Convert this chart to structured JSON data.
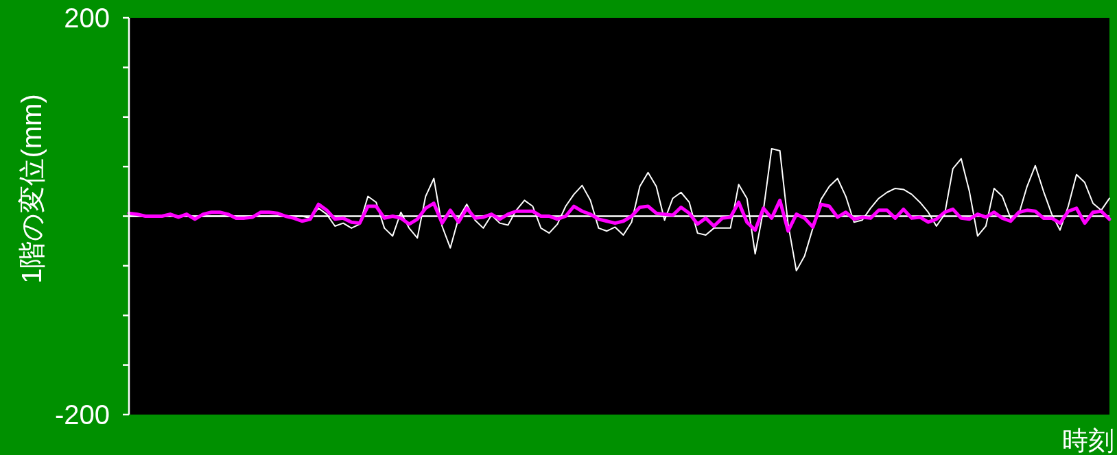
{
  "chart_data": {
    "type": "line",
    "xlabel": "時刻",
    "ylabel": "1階の変位(mm)",
    "categories": [
      null,
      null,
      null,
      null,
      null,
      null,
      null,
      null,
      null,
      null,
      null,
      null,
      null,
      null,
      null,
      null,
      null,
      null,
      null,
      null,
      null,
      null,
      null,
      null,
      null,
      null,
      null,
      null,
      null,
      null,
      null,
      null,
      null,
      null,
      null,
      null,
      null,
      null,
      null,
      null,
      null,
      null,
      null,
      null,
      null,
      null,
      null,
      null,
      null,
      null,
      null,
      null,
      null,
      null,
      null,
      null,
      null,
      null,
      null,
      null,
      null,
      null,
      null,
      null,
      null,
      null,
      null,
      null,
      null,
      null,
      null,
      null,
      null,
      null,
      null,
      null,
      null,
      null,
      null,
      null,
      null,
      null,
      null,
      null,
      null,
      null,
      null,
      null,
      null,
      null,
      null,
      null,
      null,
      null,
      null,
      null,
      null,
      null,
      null,
      null,
      null,
      null,
      null,
      null,
      null,
      null,
      null,
      null,
      null,
      null,
      null,
      null,
      null,
      null,
      null,
      null,
      null,
      null,
      null,
      null
    ],
    "series": [
      {
        "color": "#ffffff",
        "values": [
          0,
          0,
          0,
          0,
          0,
          2,
          0,
          0,
          0,
          0,
          0,
          0,
          0,
          0,
          0,
          0,
          0,
          0,
          0,
          0,
          0,
          0,
          -2,
          8,
          2,
          -10,
          -7,
          -12,
          -8,
          20,
          14,
          -12,
          -20,
          4,
          -12,
          -22,
          20,
          38,
          -10,
          -32,
          -2,
          12,
          -4,
          -12,
          1,
          -7,
          -9,
          6,
          16,
          10,
          -12,
          -17,
          -8,
          10,
          22,
          31,
          16,
          -12,
          -15,
          -11,
          -19,
          -6,
          30,
          44,
          30,
          -4,
          18,
          24,
          14,
          -17,
          -19,
          -12,
          -12,
          -12,
          32,
          18,
          -38,
          6,
          68,
          66,
          -8,
          -55,
          -40,
          -12,
          17,
          30,
          38,
          20,
          -6,
          -4,
          8,
          18,
          24,
          28,
          27,
          22,
          14,
          4,
          -10,
          2,
          48,
          58,
          25,
          -20,
          -10,
          28,
          20,
          -2,
          2,
          30,
          51,
          25,
          2,
          -14,
          10,
          42,
          34,
          13,
          6,
          18
        ]
      },
      {
        "color": "#ff00ff",
        "values": [
          3,
          2,
          0,
          0,
          0,
          2,
          -1,
          2,
          -3,
          2,
          4,
          4,
          2,
          -2,
          -2,
          -1,
          4,
          4,
          3,
          0,
          -2,
          -5,
          -3,
          12,
          6,
          -3,
          -2,
          -6,
          -7,
          10,
          10,
          -2,
          0,
          -2,
          -8,
          -3,
          8,
          13,
          -7,
          6,
          -6,
          8,
          -2,
          -1,
          2,
          -3,
          2,
          5,
          5,
          5,
          0,
          0,
          -3,
          0,
          10,
          5,
          2,
          -3,
          -5,
          -7,
          -5,
          0,
          9,
          10,
          3,
          2,
          1,
          9,
          3,
          -8,
          -2,
          -10,
          -2,
          -1,
          14,
          -6,
          -14,
          8,
          -2,
          16,
          -15,
          2,
          -2,
          -11,
          12,
          10,
          -1,
          4,
          -3,
          -1,
          -2,
          6,
          6,
          -2,
          7,
          -2,
          -1,
          -6,
          -3,
          4,
          7,
          -2,
          -3,
          2,
          -1,
          4,
          -2,
          -5,
          4,
          6,
          5,
          -2,
          -2,
          -7,
          5,
          8,
          -7,
          4,
          5,
          -3
        ]
      }
    ],
    "ylim": [
      -200,
      200
    ],
    "yticks": [
      200,
      {
        "value": 150,
        "label": null
      },
      {
        "value": 100,
        "label": null
      },
      {
        "value": 50,
        "label": null
      },
      {
        "value": 0,
        "label": null
      },
      {
        "value": -50,
        "label": null
      },
      {
        "value": -100,
        "label": null
      },
      {
        "value": -150,
        "label": null
      },
      -200
    ],
    "tick_labels": "y",
    "grid": false,
    "marker": "none",
    "line_style": "solid",
    "ref_lines": [
      {
        "axis": "y",
        "value": 0,
        "color": "#ffffff"
      }
    ]
  }
}
